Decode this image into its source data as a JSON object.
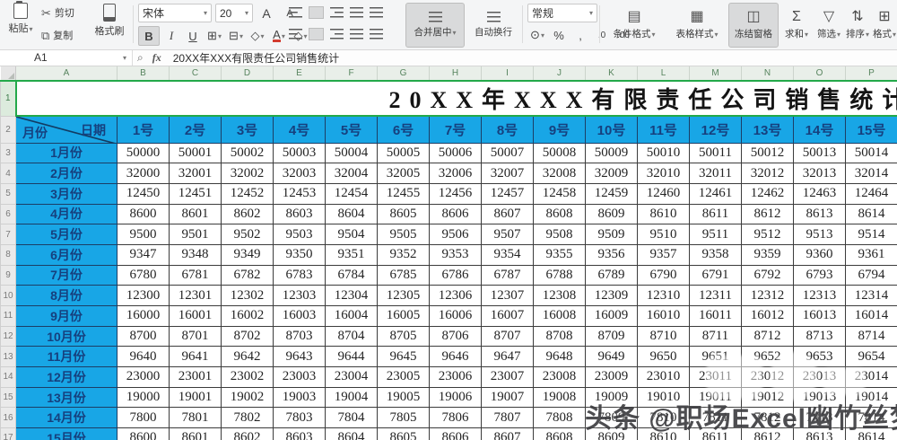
{
  "toolbar": {
    "paste": "粘贴",
    "cut": "剪切",
    "copy": "复制",
    "format_painter": "格式刷",
    "font_family": "宋体",
    "font_size": "20",
    "merge_center": "合并居中",
    "wrap_text": "自动换行",
    "number_format": "常规",
    "conditional_format": "条件格式",
    "table_style": "表格样式",
    "freeze": "冻结窗格",
    "sum": "求和",
    "filter": "筛选",
    "sort": "排序",
    "format": "格式"
  },
  "icons": {
    "cut": "✂",
    "copy": "⧉",
    "dropdown": "▾",
    "bold": "B",
    "italic": "I",
    "underline": "U",
    "borders": "⊞",
    "merge_cells_alt": "⊟",
    "fill": "◇",
    "font_color": "A",
    "clear": "◇",
    "font_bigger": "A",
    "font_smaller": "A",
    "currency": "⊙",
    "percent": "%",
    "comma": ",",
    "inc_decimal": ".0",
    "dec_decimal": ".00",
    "conditional": "▤",
    "table_style": "▦",
    "freeze": "◫",
    "sum": "Σ",
    "filter": "▽",
    "sort": "⇅",
    "format_grid": "⊞",
    "lookup": "⌕",
    "fx": "fx"
  },
  "formula_bar": {
    "name_box": "A1",
    "content": "20XX年XXX有限责任公司销售统计"
  },
  "sheet": {
    "col_letters": [
      "A",
      "B",
      "C",
      "D",
      "E",
      "F",
      "G",
      "H",
      "I",
      "J",
      "K",
      "L",
      "M",
      "N",
      "O",
      "P"
    ],
    "row_numbers": [
      1,
      2,
      3,
      4,
      5,
      6,
      7,
      8,
      9,
      10,
      11,
      12,
      13,
      14,
      15,
      16,
      17
    ],
    "title": "20XX年XXX有限责任公司销售统计",
    "header": {
      "month_label": "月份",
      "date_label": "日期",
      "days": [
        "1号",
        "2号",
        "3号",
        "4号",
        "5号",
        "6号",
        "7号",
        "8号",
        "9号",
        "10号",
        "11号",
        "12号",
        "13号",
        "14号",
        "15号"
      ]
    },
    "rows": [
      {
        "label": "1月份",
        "values": [
          50000,
          50001,
          50002,
          50003,
          50004,
          50005,
          50006,
          50007,
          50008,
          50009,
          50010,
          50011,
          50012,
          50013,
          50014
        ]
      },
      {
        "label": "2月份",
        "values": [
          32000,
          32001,
          32002,
          32003,
          32004,
          32005,
          32006,
          32007,
          32008,
          32009,
          32010,
          32011,
          32012,
          32013,
          32014
        ]
      },
      {
        "label": "3月份",
        "values": [
          12450,
          12451,
          12452,
          12453,
          12454,
          12455,
          12456,
          12457,
          12458,
          12459,
          12460,
          12461,
          12462,
          12463,
          12464
        ]
      },
      {
        "label": "4月份",
        "values": [
          8600,
          8601,
          8602,
          8603,
          8604,
          8605,
          8606,
          8607,
          8608,
          8609,
          8610,
          8611,
          8612,
          8613,
          8614
        ]
      },
      {
        "label": "5月份",
        "values": [
          9500,
          9501,
          9502,
          9503,
          9504,
          9505,
          9506,
          9507,
          9508,
          9509,
          9510,
          9511,
          9512,
          9513,
          9514
        ]
      },
      {
        "label": "6月份",
        "values": [
          9347,
          9348,
          9349,
          9350,
          9351,
          9352,
          9353,
          9354,
          9355,
          9356,
          9357,
          9358,
          9359,
          9360,
          9361
        ]
      },
      {
        "label": "7月份",
        "values": [
          6780,
          6781,
          6782,
          6783,
          6784,
          6785,
          6786,
          6787,
          6788,
          6789,
          6790,
          6791,
          6792,
          6793,
          6794
        ]
      },
      {
        "label": "8月份",
        "values": [
          12300,
          12301,
          12302,
          12303,
          12304,
          12305,
          12306,
          12307,
          12308,
          12309,
          12310,
          12311,
          12312,
          12313,
          12314
        ]
      },
      {
        "label": "9月份",
        "values": [
          16000,
          16001,
          16002,
          16003,
          16004,
          16005,
          16006,
          16007,
          16008,
          16009,
          16010,
          16011,
          16012,
          16013,
          16014
        ]
      },
      {
        "label": "10月份",
        "values": [
          8700,
          8701,
          8702,
          8703,
          8704,
          8705,
          8706,
          8707,
          8708,
          8709,
          8710,
          8711,
          8712,
          8713,
          8714
        ]
      },
      {
        "label": "11月份",
        "values": [
          9640,
          9641,
          9642,
          9643,
          9644,
          9645,
          9646,
          9647,
          9648,
          9649,
          9650,
          9651,
          9652,
          9653,
          9654
        ]
      },
      {
        "label": "12月份",
        "values": [
          23000,
          23001,
          23002,
          23003,
          23004,
          23005,
          23006,
          23007,
          23008,
          23009,
          23010,
          23011,
          23012,
          23013,
          23014
        ]
      },
      {
        "label": "13月份",
        "values": [
          19000,
          19001,
          19002,
          19003,
          19004,
          19005,
          19006,
          19007,
          19008,
          19009,
          19010,
          19011,
          19012,
          19013,
          19014
        ]
      },
      {
        "label": "14月份",
        "values": [
          7800,
          7801,
          7802,
          7803,
          7804,
          7805,
          7806,
          7807,
          7808,
          7809,
          7810,
          7811,
          7812,
          7813,
          7814
        ]
      },
      {
        "label": "15月份",
        "values": [
          8600,
          8601,
          8602,
          8603,
          8604,
          8605,
          8606,
          8607,
          8608,
          8609,
          8610,
          8611,
          8612,
          8613,
          8614
        ]
      }
    ],
    "colors": {
      "header_blue": "#18A6E6",
      "header_text": "#16407E",
      "selection_green": "#23A94A"
    }
  },
  "watermark": {
    "text": "头条 @职场Excel幽竹丝梦"
  }
}
